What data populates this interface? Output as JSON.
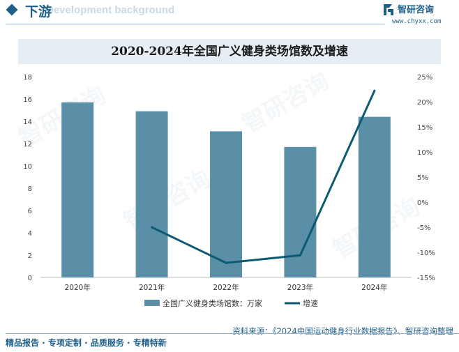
{
  "header": {
    "section_title": "下游",
    "section_bg_text": "Development background",
    "logo_text": "智研咨询",
    "logo_url": "www.chyxx.com"
  },
  "chart_data": {
    "type": "bar",
    "title": "2020-2024年全国广义健身类场馆数及增速",
    "categories": [
      "2020年",
      "2021年",
      "2022年",
      "2023年",
      "2024年"
    ],
    "series": [
      {
        "name": "全国广义健身类场馆数：万家",
        "type": "bar",
        "axis": "left",
        "values": [
          15.7,
          14.9,
          13.1,
          11.7,
          14.4
        ]
      },
      {
        "name": "增速",
        "type": "line",
        "axis": "right",
        "values": [
          null,
          -5.0,
          -12.1,
          -10.6,
          22.2
        ]
      }
    ],
    "y_left": {
      "min": 0,
      "max": 18,
      "ticks": [
        "0",
        "2",
        "4",
        "6",
        "8",
        "10",
        "12",
        "14",
        "16",
        "18"
      ]
    },
    "y_right": {
      "min": -15,
      "max": 25,
      "ticks": [
        "-15%",
        "-10%",
        "-5%",
        "0%",
        "5%",
        "10%",
        "15%",
        "20%",
        "25%"
      ]
    },
    "colors": {
      "bar": "#5b8fa8",
      "line": "#0d5a73"
    },
    "grid": false,
    "legend_position": "bottom"
  },
  "footer": {
    "source": "资料来源：《2024中国运动健身行业数据报告》、智研咨询整理",
    "slogan": "精品报告 · 专项定制 · 品质服务 · 专精特新"
  },
  "watermark": "智研咨询"
}
